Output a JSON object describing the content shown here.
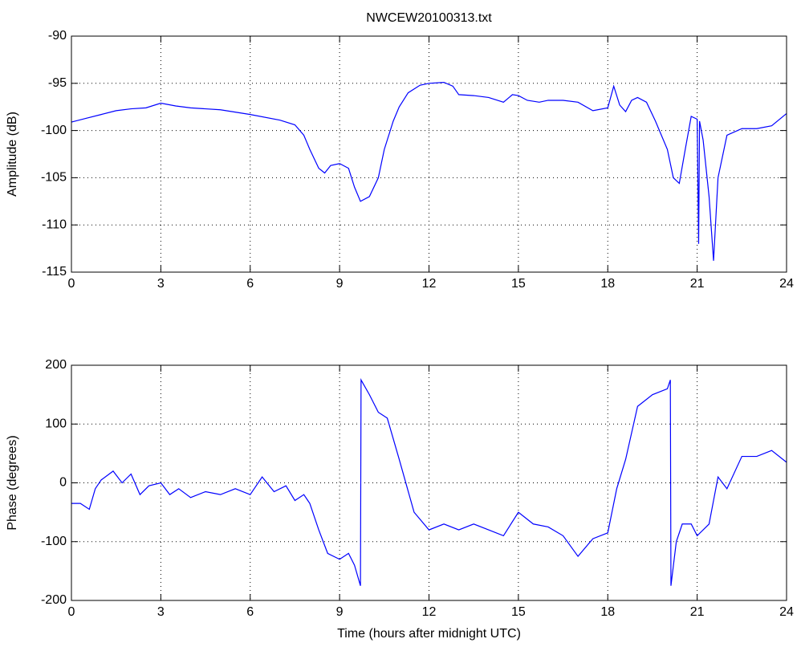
{
  "chart_data": [
    {
      "type": "line",
      "title": "NWCEW20100313.txt",
      "ylabel": "Amplitude (dB)",
      "xlim": [
        0,
        24
      ],
      "xticks": [
        0,
        3,
        6,
        9,
        12,
        15,
        18,
        21,
        24
      ],
      "ylim": [
        -115,
        -90
      ],
      "yticks": [
        -115,
        -110,
        -105,
        -100,
        -95,
        -90
      ],
      "grid": true,
      "series": [
        {
          "color": "#0000ff",
          "x": [
            0,
            0.5,
            1,
            1.5,
            2,
            2.5,
            3,
            3.5,
            4,
            5,
            6,
            7,
            7.5,
            7.8,
            8,
            8.3,
            8.5,
            8.7,
            9,
            9.3,
            9.5,
            9.7,
            10,
            10.3,
            10.5,
            10.8,
            11,
            11.3,
            11.7,
            12,
            12.5,
            12.8,
            13,
            13.5,
            14,
            14.5,
            14.8,
            15,
            15.3,
            15.7,
            16,
            16.5,
            17,
            17.5,
            18,
            18.2,
            18.4,
            18.6,
            18.8,
            19,
            19.3,
            19.6,
            20,
            20.2,
            20.4,
            20.6,
            20.8,
            21,
            21.05,
            21.08,
            21.2,
            21.4,
            21.55,
            21.7,
            22,
            22.5,
            23,
            23.5,
            24
          ],
          "values": [
            -99.1,
            -98.7,
            -98.3,
            -97.9,
            -97.7,
            -97.6,
            -97.1,
            -97.4,
            -97.6,
            -97.8,
            -98.3,
            -98.9,
            -99.4,
            -100.5,
            -102,
            -104,
            -104.5,
            -103.7,
            -103.5,
            -104,
            -106,
            -107.5,
            -107,
            -105,
            -102,
            -99,
            -97.5,
            -96,
            -95.2,
            -95,
            -94.9,
            -95.3,
            -96.2,
            -96.3,
            -96.5,
            -97,
            -96.2,
            -96.3,
            -96.8,
            -97,
            -96.8,
            -96.8,
            -97,
            -97.9,
            -97.6,
            -95.3,
            -97.3,
            -98,
            -96.8,
            -96.5,
            -97,
            -99,
            -102,
            -105,
            -105.6,
            -102,
            -98.5,
            -98.8,
            -112,
            -99,
            -101,
            -107,
            -113.8,
            -105,
            -100.5,
            -99.8,
            -99.8,
            -99.5,
            -98.2
          ]
        }
      ]
    },
    {
      "type": "line",
      "ylabel": "Phase (degrees)",
      "xlabel": "Time (hours after midnight UTC)",
      "xlim": [
        0,
        24
      ],
      "xticks": [
        0,
        3,
        6,
        9,
        12,
        15,
        18,
        21,
        24
      ],
      "ylim": [
        -200,
        200
      ],
      "yticks": [
        -200,
        -100,
        0,
        100,
        200
      ],
      "grid": true,
      "series": [
        {
          "color": "#0000ff",
          "x": [
            0,
            0.3,
            0.6,
            0.8,
            1,
            1.4,
            1.7,
            2,
            2.3,
            2.6,
            3,
            3.3,
            3.6,
            4,
            4.5,
            5,
            5.5,
            6,
            6.4,
            6.8,
            7.2,
            7.5,
            7.8,
            8,
            8.3,
            8.6,
            9,
            9.3,
            9.5,
            9.7,
            9.72,
            10,
            10.3,
            10.6,
            11,
            11.5,
            12,
            12.5,
            13,
            13.5,
            14,
            14.5,
            15,
            15.5,
            16,
            16.5,
            17,
            17.5,
            18,
            18.3,
            18.6,
            19,
            19.5,
            20,
            20.1,
            20.12,
            20.3,
            20.5,
            20.8,
            21,
            21.4,
            21.7,
            22,
            22.5,
            23,
            23.5,
            24
          ],
          "values": [
            -35,
            -35,
            -45,
            -10,
            5,
            20,
            0,
            15,
            -20,
            -5,
            0,
            -20,
            -10,
            -25,
            -15,
            -20,
            -10,
            -20,
            10,
            -15,
            -5,
            -30,
            -20,
            -35,
            -80,
            -120,
            -130,
            -120,
            -140,
            -175,
            175,
            150,
            120,
            110,
            40,
            -50,
            -80,
            -70,
            -80,
            -70,
            -80,
            -90,
            -50,
            -70,
            -75,
            -90,
            -125,
            -95,
            -85,
            -10,
            40,
            130,
            150,
            160,
            175,
            -175,
            -100,
            -70,
            -70,
            -90,
            -70,
            10,
            -10,
            45,
            45,
            55,
            35
          ]
        }
      ]
    }
  ]
}
